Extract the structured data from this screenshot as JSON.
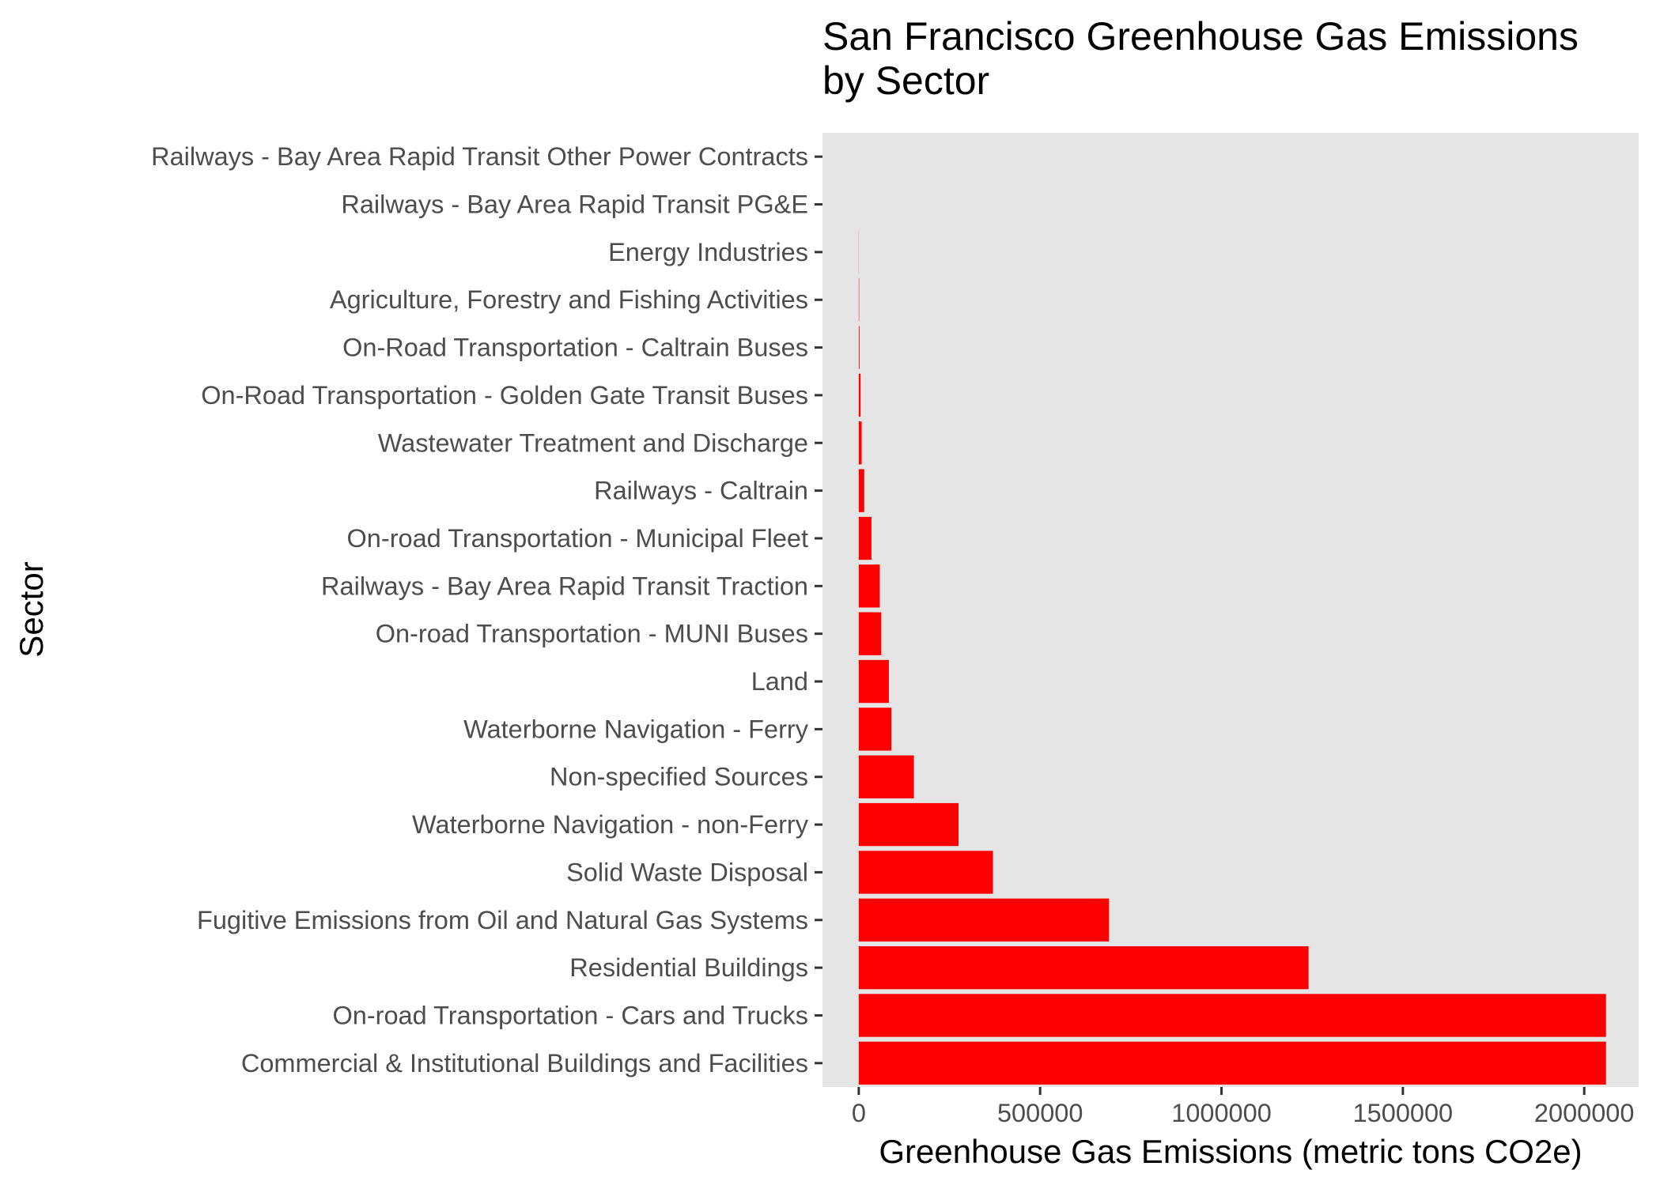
{
  "chart_data": {
    "type": "bar",
    "orientation": "horizontal",
    "title": "San Francisco Greenhouse Gas Emissions by Sector",
    "title_lines": [
      "San Francisco Greenhouse Gas Emissions",
      "by Sector"
    ],
    "xlabel": "Greenhouse Gas Emissions (metric tons CO2e)",
    "ylabel": "Sector",
    "xlim": [
      -100000,
      2150000
    ],
    "x_ticks": [
      0,
      500000,
      1000000,
      1500000,
      2000000
    ],
    "x_tick_labels": [
      "0",
      "500000",
      "1000000",
      "1500000",
      "2000000"
    ],
    "grid": false,
    "legend": "none",
    "colors": {
      "bar": "#ff0000",
      "panel": "#e5e5e5",
      "text": "#4d4d4d"
    },
    "categories": [
      "Commercial & Institutional Buildings and Facilities",
      "On-road Transportation - Cars and Trucks",
      "Residential Buildings",
      "Fugitive Emissions from Oil and Natural Gas Systems",
      "Solid Waste Disposal",
      "Waterborne Navigation - non-Ferry",
      "Non-specified Sources",
      "Waterborne Navigation - Ferry",
      "Land",
      "On-road Transportation - MUNI Buses",
      "Railways - Bay Area Rapid Transit Traction",
      "On-road Transportation - Municipal Fleet",
      "Railways - Caltrain",
      "Wastewater Treatment and Discharge",
      "On-Road Transportation - Golden Gate Transit Buses",
      "On-Road Transportation - Caltrain Buses",
      "Agriculture, Forestry and Fishing Activities",
      "Energy Industries",
      "Railways - Bay Area Rapid Transit PG&E",
      "Railways - Bay Area Rapid Transit Other Power Contracts"
    ],
    "values": [
      2060000,
      2060000,
      1240000,
      690000,
      370000,
      275000,
      152000,
      90000,
      83000,
      62000,
      58000,
      35000,
      15000,
      8000,
      5000,
      2000,
      1000,
      300,
      0,
      0
    ]
  }
}
